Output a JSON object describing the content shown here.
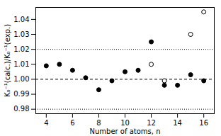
{
  "chart_data": {
    "type": "scatter",
    "xlabel": "Number of atoms, n",
    "ylabel": "K₀⁻¹(calc.)/K₀⁻¹(exp.)",
    "series": [
      {
        "x": [
          4,
          5,
          6,
          7,
          8,
          9,
          10,
          11,
          12,
          13,
          14,
          15,
          16
        ],
        "values": [
          1.009,
          1.01,
          1.006,
          1.001,
          0.993,
          0.999,
          1.005,
          1.006,
          1.025,
          0.996,
          0.996,
          1.003,
          0.999
        ],
        "color": "black",
        "marker": "circle"
      },
      {
        "x": [
          12,
          13,
          15,
          16
        ],
        "values": [
          1.01,
          0.999,
          1.03,
          1.045
        ],
        "color": "black",
        "marker": "open_circle"
      }
    ],
    "reference_lines": [
      {
        "y": 1.0,
        "color": "black",
        "line_style": "dashed"
      },
      {
        "y": 1.02,
        "color": "black",
        "line_style": "dotted"
      },
      {
        "y": 0.98,
        "color": "black",
        "line_style": "dotted"
      }
    ],
    "xlim": [
      3.2,
      16.8
    ],
    "ylim": [
      0.977,
      1.048
    ],
    "xticks": [
      4,
      6,
      8,
      10,
      12,
      14,
      16
    ],
    "yticks": [
      0.98,
      0.99,
      {
        "value": 1.0,
        "label": "1.00"
      },
      1.01,
      1.02,
      1.03,
      1.04
    ],
    "grid": false
  }
}
